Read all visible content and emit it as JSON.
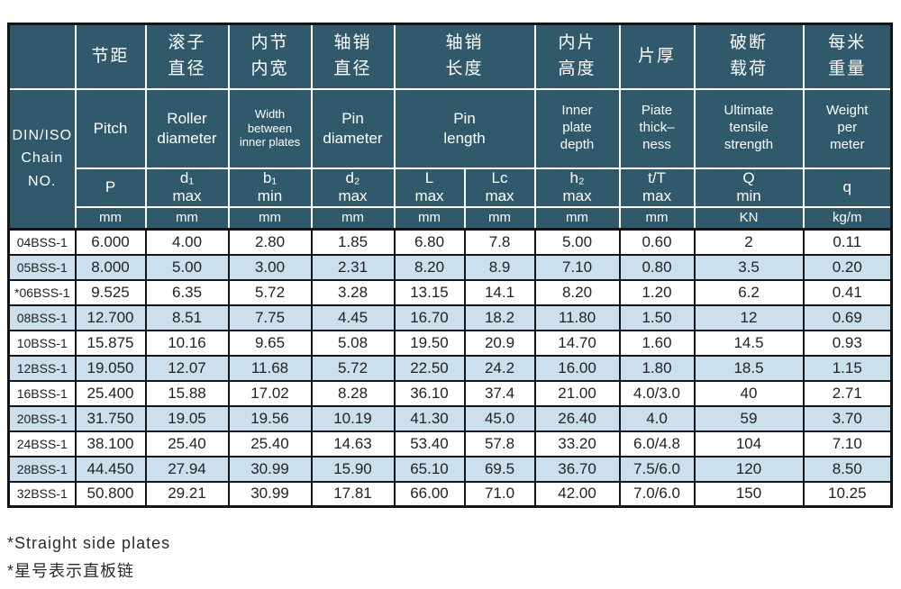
{
  "colors": {
    "header_bg": "#305a6b",
    "stripe_bg": "#cbdfec",
    "grid_dark": "#161616",
    "grid_light": "#ffffff"
  },
  "table": {
    "header_cn": [
      "",
      "节距",
      "滚子\n直径",
      "内节\n内宽",
      "轴销\n直径",
      "轴销\n长度",
      "内片\n高度",
      "片厚",
      "破断\n载荷",
      "每米\n重量"
    ],
    "header_en": [
      "DIN/ISO\nChain\nNO.",
      "Pitch",
      "Roller\ndiameter",
      "Width\nbetween\ninner plates",
      "Pin\ndiameter",
      "Pin\nlength",
      "Inner\nplate\ndepth",
      "Piate\nthick–\nness",
      "Ultimate\ntensile\nstrength",
      "Weight\nper\nmeter"
    ],
    "header_sym": [
      "P",
      "d₁\nmax",
      "b₁\nmin",
      "d₂\nmax",
      "L\nmax",
      "Lc\nmax",
      "h₂\nmax",
      "t/T\nmax",
      "Q\nmin",
      "q"
    ],
    "header_units": [
      "mm",
      "mm",
      "mm",
      "mm",
      "mm",
      "mm",
      "mm",
      "mm",
      "KN",
      "kg/m"
    ],
    "rows": [
      {
        "chain_no": "04BSS-1",
        "values": [
          "6.000",
          "4.00",
          "2.80",
          "1.85",
          "6.80",
          "7.8",
          "5.00",
          "0.60",
          "2",
          "0.11"
        ]
      },
      {
        "chain_no": "05BSS-1",
        "values": [
          "8.000",
          "5.00",
          "3.00",
          "2.31",
          "8.20",
          "8.9",
          "7.10",
          "0.80",
          "3.5",
          "0.20"
        ]
      },
      {
        "chain_no": "*06BSS-1",
        "values": [
          "9.525",
          "6.35",
          "5.72",
          "3.28",
          "13.15",
          "14.1",
          "8.20",
          "1.20",
          "6.2",
          "0.41"
        ]
      },
      {
        "chain_no": "08BSS-1",
        "values": [
          "12.700",
          "8.51",
          "7.75",
          "4.45",
          "16.70",
          "18.2",
          "11.80",
          "1.50",
          "12",
          "0.69"
        ]
      },
      {
        "chain_no": "10BSS-1",
        "values": [
          "15.875",
          "10.16",
          "9.65",
          "5.08",
          "19.50",
          "20.9",
          "14.70",
          "1.60",
          "14.5",
          "0.93"
        ]
      },
      {
        "chain_no": "12BSS-1",
        "values": [
          "19.050",
          "12.07",
          "11.68",
          "5.72",
          "22.50",
          "24.2",
          "16.00",
          "1.80",
          "18.5",
          "1.15"
        ]
      },
      {
        "chain_no": "16BSS-1",
        "values": [
          "25.400",
          "15.88",
          "17.02",
          "8.28",
          "36.10",
          "37.4",
          "21.00",
          "4.0/3.0",
          "40",
          "2.71"
        ]
      },
      {
        "chain_no": "20BSS-1",
        "values": [
          "31.750",
          "19.05",
          "19.56",
          "10.19",
          "41.30",
          "45.0",
          "26.40",
          "4.0",
          "59",
          "3.70"
        ]
      },
      {
        "chain_no": "24BSS-1",
        "values": [
          "38.100",
          "25.40",
          "25.40",
          "14.63",
          "53.40",
          "57.8",
          "33.20",
          "6.0/4.8",
          "104",
          "7.10"
        ]
      },
      {
        "chain_no": "28BSS-1",
        "values": [
          "44.450",
          "27.94",
          "30.99",
          "15.90",
          "65.10",
          "69.5",
          "36.70",
          "7.5/6.0",
          "120",
          "8.50"
        ]
      },
      {
        "chain_no": "32BSS-1",
        "values": [
          "50.800",
          "29.21",
          "30.99",
          "17.81",
          "66.00",
          "71.0",
          "42.00",
          "7.0/6.0",
          "150",
          "10.25"
        ]
      }
    ]
  },
  "notes": {
    "line1": "*Straight side plates",
    "line2": "*星号表示直板链"
  }
}
